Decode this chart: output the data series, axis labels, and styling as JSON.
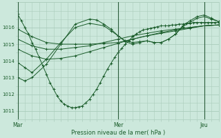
{
  "xlabel": "Pression niveau de la mer( hPa )",
  "background_color": "#cce8dc",
  "plot_bg_color": "#cce8dc",
  "grid_color": "#aaccbb",
  "line_color": "#1a5c2a",
  "tick_label_color": "#1a5c2a",
  "xlabel_color": "#1a5c2a",
  "ylim": [
    1010.6,
    1017.0
  ],
  "xlim": [
    0,
    56
  ],
  "xtick_positions": [
    0,
    28,
    52
  ],
  "xtick_labels": [
    "Mar",
    "Mer",
    "Jeu"
  ],
  "ytick_positions": [
    1011,
    1012,
    1013,
    1014,
    1015,
    1016
  ],
  "vlines": [
    0,
    28,
    52
  ],
  "series": [
    {
      "x": [
        0,
        1,
        2,
        3,
        4,
        5,
        6,
        7,
        8,
        9,
        10,
        11,
        12,
        13,
        14,
        15,
        16,
        17,
        18,
        19,
        20,
        21,
        22,
        23,
        24,
        25,
        26,
        27,
        28,
        29,
        30,
        31,
        32,
        33,
        34,
        35,
        36,
        37,
        38,
        39,
        40,
        41,
        42,
        43,
        44,
        45,
        46,
        47,
        48,
        49,
        50,
        51,
        52,
        53,
        54,
        55,
        56
      ],
      "y": [
        1016.8,
        1016.4,
        1016.0,
        1015.6,
        1015.1,
        1014.7,
        1014.2,
        1013.7,
        1013.2,
        1012.7,
        1012.3,
        1011.9,
        1011.6,
        1011.4,
        1011.3,
        1011.2,
        1011.2,
        1011.25,
        1011.3,
        1011.5,
        1011.7,
        1012.0,
        1012.3,
        1012.7,
        1013.1,
        1013.5,
        1013.85,
        1014.2,
        1014.5,
        1014.75,
        1015.0,
        1015.2,
        1015.45,
        1015.6,
        1015.75,
        1015.85,
        1015.9,
        1015.95,
        1016.0,
        1016.05,
        1016.1,
        1016.1,
        1016.1,
        1016.15,
        1016.15,
        1016.2,
        1016.2,
        1016.25,
        1016.25,
        1016.3,
        1016.3,
        1016.3,
        1016.3,
        1016.3,
        1016.3,
        1016.3,
        1016.3
      ]
    },
    {
      "x": [
        0,
        4,
        8,
        12,
        16,
        20,
        24,
        28,
        32,
        36,
        40,
        44,
        48,
        52,
        56
      ],
      "y": [
        1015.9,
        1015.45,
        1015.1,
        1015.0,
        1015.0,
        1015.0,
        1015.05,
        1015.1,
        1015.3,
        1015.5,
        1015.65,
        1015.8,
        1015.95,
        1016.1,
        1016.15
      ]
    },
    {
      "x": [
        0,
        4,
        8,
        12,
        16,
        20,
        24,
        28,
        32,
        36,
        40,
        44,
        48,
        52,
        56
      ],
      "y": [
        1015.3,
        1014.9,
        1014.7,
        1014.7,
        1014.8,
        1014.9,
        1015.1,
        1015.3,
        1015.5,
        1015.65,
        1015.8,
        1015.9,
        1016.0,
        1016.1,
        1016.15
      ]
    },
    {
      "x": [
        0,
        4,
        8,
        12,
        16,
        20,
        24,
        28,
        32,
        36,
        40,
        44,
        48,
        52,
        56
      ],
      "y": [
        1014.7,
        1014.3,
        1014.1,
        1014.15,
        1014.3,
        1014.55,
        1014.8,
        1015.05,
        1015.3,
        1015.5,
        1015.7,
        1015.85,
        1016.0,
        1016.1,
        1016.15
      ]
    },
    {
      "x": [
        0,
        2,
        4,
        8,
        12,
        16,
        20,
        24,
        26,
        28,
        30,
        32,
        34,
        36,
        38,
        40,
        42,
        44,
        46,
        48,
        50,
        52,
        54,
        56
      ],
      "y": [
        1013.9,
        1013.6,
        1013.3,
        1014.1,
        1015.1,
        1016.0,
        1016.25,
        1016.1,
        1015.8,
        1015.5,
        1015.2,
        1015.1,
        1015.15,
        1015.2,
        1015.1,
        1015.1,
        1015.3,
        1015.6,
        1016.05,
        1016.3,
        1016.55,
        1016.65,
        1016.5,
        1016.35
      ]
    },
    {
      "x": [
        0,
        2,
        4,
        8,
        12,
        16,
        20,
        22,
        24,
        26,
        28,
        30,
        32,
        34,
        36,
        38,
        40,
        42,
        44,
        46,
        48,
        50,
        52,
        54,
        56
      ],
      "y": [
        1013.0,
        1012.8,
        1013.0,
        1013.8,
        1015.0,
        1016.2,
        1016.5,
        1016.45,
        1016.2,
        1015.9,
        1015.5,
        1015.15,
        1015.0,
        1015.1,
        1015.2,
        1015.1,
        1015.1,
        1015.3,
        1015.6,
        1016.1,
        1016.4,
        1016.65,
        1016.75,
        1016.55,
        1016.35
      ]
    }
  ]
}
